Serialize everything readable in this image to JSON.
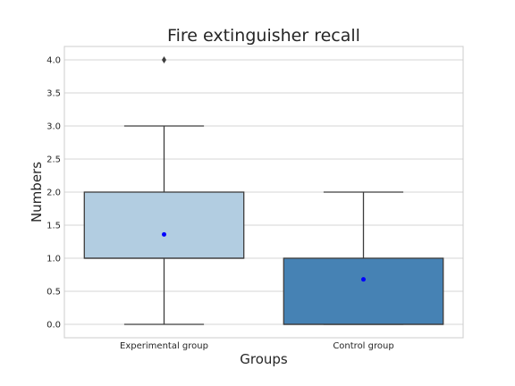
{
  "chart_data": {
    "type": "box",
    "title": "Fire extinguisher recall",
    "xlabel": "Groups",
    "ylabel": "Numbers",
    "ylim": [
      -0.2,
      4.2
    ],
    "yticks": [
      0.0,
      0.5,
      1.0,
      1.5,
      2.0,
      2.5,
      3.0,
      3.5,
      4.0
    ],
    "ytick_labels": [
      "0.0",
      "0.5",
      "1.0",
      "1.5",
      "2.0",
      "2.5",
      "3.0",
      "3.5",
      "4.0"
    ],
    "grid": true,
    "categories": [
      "Experimental group",
      "Control group"
    ],
    "boxes": [
      {
        "category": "Experimental group",
        "whisker_low": 0,
        "q1": 1,
        "median": 1,
        "q3": 2,
        "whisker_high": 3,
        "mean": 1.36,
        "fliers": [
          4
        ],
        "color": "#b2cde1"
      },
      {
        "category": "Control group",
        "whisker_low": 0,
        "q1": 0,
        "median": 0,
        "q3": 1,
        "whisker_high": 2,
        "mean": 0.68,
        "fliers": [],
        "color": "#4682b4"
      }
    ],
    "mean_marker_color": "#0000ff"
  }
}
